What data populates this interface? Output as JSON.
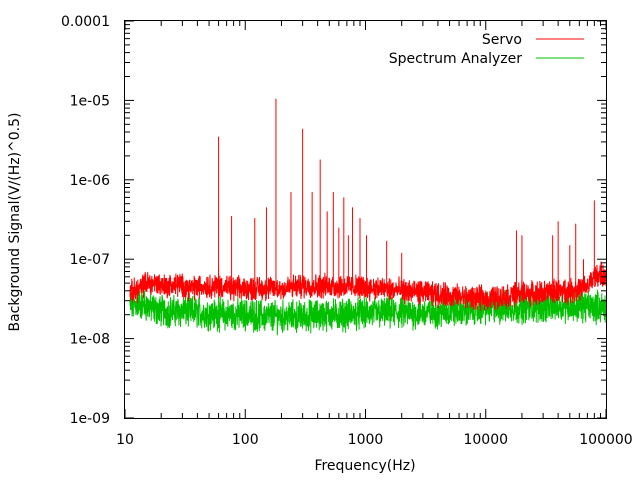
{
  "chart_data": {
    "type": "line",
    "title": "",
    "xlabel": "Frequency(Hz)",
    "ylabel": "Background Signal(V/(Hz)^0.5)",
    "x_scale": "log",
    "y_scale": "log",
    "xlim": [
      10,
      100000
    ],
    "ylim": [
      1e-09,
      0.0001
    ],
    "x_ticks": [
      {
        "value": 10,
        "label": "10"
      },
      {
        "value": 100,
        "label": "100"
      },
      {
        "value": 1000,
        "label": "1000"
      },
      {
        "value": 10000,
        "label": "10000"
      },
      {
        "value": 100000,
        "label": "100000"
      }
    ],
    "y_ticks": [
      {
        "value": 1e-09,
        "label": "1e-09"
      },
      {
        "value": 1e-08,
        "label": "1e-08"
      },
      {
        "value": 1e-07,
        "label": "1e-07"
      },
      {
        "value": 1e-06,
        "label": "1e-06"
      },
      {
        "value": 1e-05,
        "label": "1e-05"
      },
      {
        "value": 0.0001,
        "label": "0.0001"
      }
    ],
    "grid": false,
    "legend_position": "top-right",
    "series": [
      {
        "name": "Servo",
        "color": "#ff0000",
        "noise_amplitude": 0.12,
        "x": [
          11,
          13,
          15,
          18,
          22,
          28,
          35,
          45,
          60,
          80,
          100,
          150,
          200,
          300,
          500,
          700,
          1000,
          1500,
          2000,
          3000,
          4000,
          5000,
          7000,
          10000,
          13000,
          16000,
          20000,
          25000,
          30000,
          40000,
          50000,
          60000,
          70000,
          80000,
          90000,
          100000
        ],
        "y": [
          3.8e-08,
          4.2e-08,
          5e-08,
          5e-08,
          4.6e-08,
          4.8e-08,
          4.3e-08,
          4.6e-08,
          4.6e-08,
          4.2e-08,
          4.3e-08,
          4.3e-08,
          4.3e-08,
          4.6e-08,
          4.6e-08,
          4.5e-08,
          4.4e-08,
          4.2e-08,
          4e-08,
          3.8e-08,
          3.6e-08,
          3.5e-08,
          3.3e-08,
          3.2e-08,
          3.3e-08,
          3.5e-08,
          3.8e-08,
          3.7e-08,
          3.8e-08,
          4e-08,
          4e-08,
          4.2e-08,
          4.5e-08,
          6e-08,
          6.5e-08,
          5.5e-08
        ],
        "spikes": [
          {
            "x": 60,
            "y": 3.5e-06
          },
          {
            "x": 77,
            "y": 3.5e-07
          },
          {
            "x": 120,
            "y": 3.3e-07
          },
          {
            "x": 150,
            "y": 4.5e-07
          },
          {
            "x": 180,
            "y": 1.05e-05
          },
          {
            "x": 240,
            "y": 7e-07
          },
          {
            "x": 300,
            "y": 4.4e-06
          },
          {
            "x": 360,
            "y": 7e-07
          },
          {
            "x": 420,
            "y": 1.8e-06
          },
          {
            "x": 480,
            "y": 4e-07
          },
          {
            "x": 540,
            "y": 7e-07
          },
          {
            "x": 600,
            "y": 2.5e-07
          },
          {
            "x": 660,
            "y": 6e-07
          },
          {
            "x": 720,
            "y": 2e-07
          },
          {
            "x": 780,
            "y": 4.5e-07
          },
          {
            "x": 900,
            "y": 3.3e-07
          },
          {
            "x": 1020,
            "y": 2e-07
          },
          {
            "x": 1500,
            "y": 1.7e-07
          },
          {
            "x": 2000,
            "y": 1.2e-07
          },
          {
            "x": 18000,
            "y": 2.3e-07
          },
          {
            "x": 20000,
            "y": 2e-07
          },
          {
            "x": 36000,
            "y": 2e-07
          },
          {
            "x": 40000,
            "y": 3e-07
          },
          {
            "x": 50000,
            "y": 1.5e-07
          },
          {
            "x": 56000,
            "y": 2.8e-07
          },
          {
            "x": 65000,
            "y": 1e-07
          },
          {
            "x": 80000,
            "y": 5.5e-07
          }
        ]
      },
      {
        "name": "Spectrum Analyzer",
        "color": "#00c000",
        "noise_amplitude": 0.16,
        "x": [
          11,
          13,
          15,
          18,
          22,
          28,
          35,
          45,
          60,
          80,
          100,
          150,
          200,
          300,
          500,
          700,
          1000,
          1500,
          2000,
          3000,
          5000,
          10000,
          20000,
          50000,
          100000
        ],
        "y": [
          2.5e-08,
          2.8e-08,
          2.6e-08,
          2.3e-08,
          2.2e-08,
          2.2e-08,
          2.2e-08,
          2.1e-08,
          2e-08,
          2e-08,
          2e-08,
          1.9e-08,
          1.9e-08,
          1.9e-08,
          2e-08,
          2e-08,
          2.1e-08,
          2.1e-08,
          2.1e-08,
          2.1e-08,
          2.2e-08,
          2.4e-08,
          2.5e-08,
          2.6e-08,
          2.5e-08
        ],
        "spikes": [
          {
            "x": 60,
            "y": 8e-08
          }
        ]
      }
    ]
  }
}
